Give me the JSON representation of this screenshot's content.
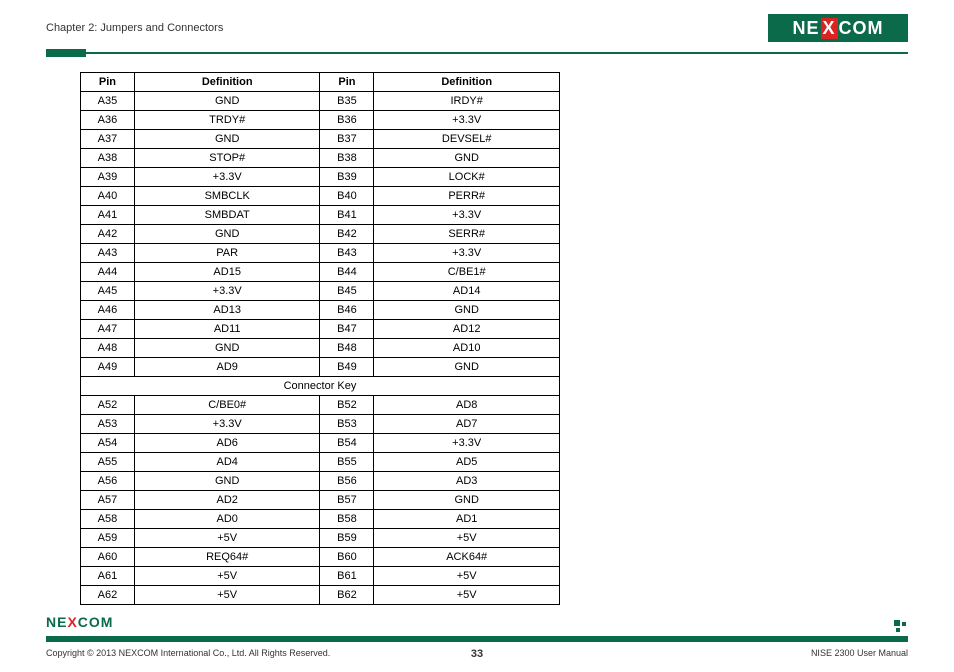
{
  "header": {
    "chapter_title": "Chapter 2: Jumpers and Connectors",
    "logo_text_left": "NE",
    "logo_text_x": "X",
    "logo_text_right": "COM"
  },
  "table": {
    "columns": [
      "Pin",
      "Definition",
      "Pin",
      "Definition"
    ],
    "rows_before_key": [
      [
        "A35",
        "GND",
        "B35",
        "IRDY#"
      ],
      [
        "A36",
        "TRDY#",
        "B36",
        "+3.3V"
      ],
      [
        "A37",
        "GND",
        "B37",
        "DEVSEL#"
      ],
      [
        "A38",
        "STOP#",
        "B38",
        "GND"
      ],
      [
        "A39",
        "+3.3V",
        "B39",
        "LOCK#"
      ],
      [
        "A40",
        "SMBCLK",
        "B40",
        "PERR#"
      ],
      [
        "A41",
        "SMBDAT",
        "B41",
        "+3.3V"
      ],
      [
        "A42",
        "GND",
        "B42",
        "SERR#"
      ],
      [
        "A43",
        "PAR",
        "B43",
        "+3.3V"
      ],
      [
        "A44",
        "AD15",
        "B44",
        "C/BE1#"
      ],
      [
        "A45",
        "+3.3V",
        "B45",
        "AD14"
      ],
      [
        "A46",
        "AD13",
        "B46",
        "GND"
      ],
      [
        "A47",
        "AD11",
        "B47",
        "AD12"
      ],
      [
        "A48",
        "GND",
        "B48",
        "AD10"
      ],
      [
        "A49",
        "AD9",
        "B49",
        "GND"
      ]
    ],
    "connector_key_label": "Connector Key",
    "rows_after_key": [
      [
        "A52",
        "C/BE0#",
        "B52",
        "AD8"
      ],
      [
        "A53",
        "+3.3V",
        "B53",
        "AD7"
      ],
      [
        "A54",
        "AD6",
        "B54",
        "+3.3V"
      ],
      [
        "A55",
        "AD4",
        "B55",
        "AD5"
      ],
      [
        "A56",
        "GND",
        "B56",
        "AD3"
      ],
      [
        "A57",
        "AD2",
        "B57",
        "GND"
      ],
      [
        "A58",
        "AD0",
        "B58",
        "AD1"
      ],
      [
        "A59",
        "+5V",
        "B59",
        "+5V"
      ],
      [
        "A60",
        "REQ64#",
        "B60",
        "ACK64#"
      ],
      [
        "A61",
        "+5V",
        "B61",
        "+5V"
      ],
      [
        "A62",
        "+5V",
        "B62",
        "+5V"
      ]
    ]
  },
  "footer": {
    "copyright": "Copyright © 2013 NEXCOM International Co., Ltd. All Rights Reserved.",
    "page_number": "33",
    "manual_name": "NISE 2300 User Manual"
  },
  "colors": {
    "brand_green": "#0a6a4a",
    "brand_red": "#d22",
    "text": "#333333",
    "border": "#000000",
    "background": "#ffffff"
  }
}
